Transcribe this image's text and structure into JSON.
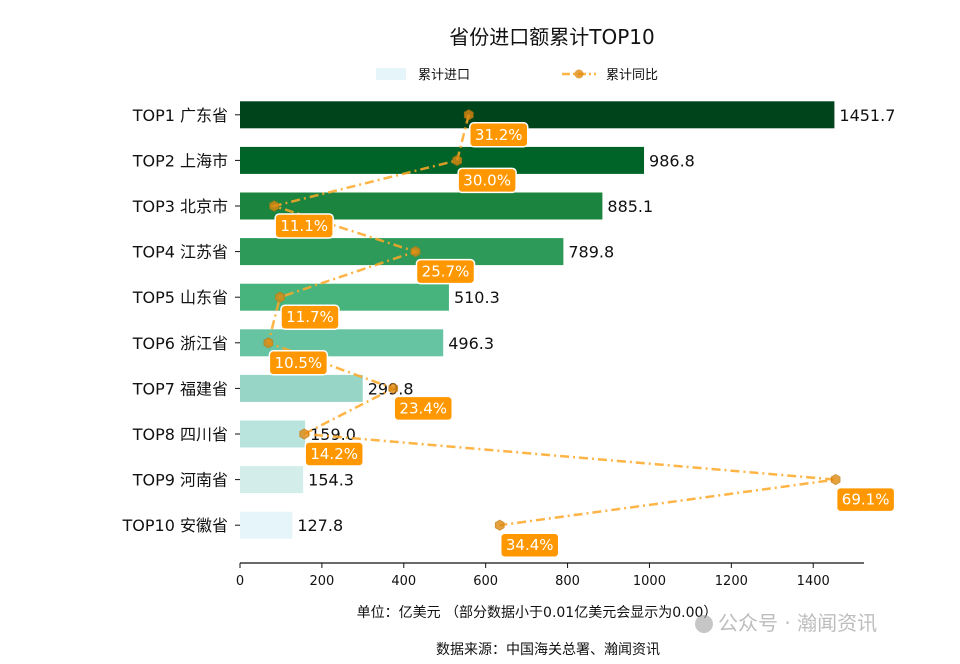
{
  "chart_data": {
    "type": "bar",
    "orientation": "horizontal",
    "title": "省份进口额累计TOP10",
    "categories": [
      "TOP1 广东省",
      "TOP2 上海市",
      "TOP3 北京市",
      "TOP4 江苏省",
      "TOP5 山东省",
      "TOP6 浙江省",
      "TOP7 福建省",
      "TOP8 四川省",
      "TOP9 河南省",
      "TOP10 安徽省"
    ],
    "series": [
      {
        "name": "累计进口",
        "type": "bar",
        "values": [
          1451.7,
          986.8,
          885.1,
          789.8,
          510.3,
          496.3,
          299.8,
          159.0,
          154.3,
          127.8
        ],
        "colors": [
          "#00441b",
          "#006428",
          "#1b843f",
          "#2e9a59",
          "#48b47d",
          "#66c4a3",
          "#97d6c6",
          "#b9e4dd",
          "#d3eeea",
          "#e5f5f9"
        ]
      },
      {
        "name": "累计同比",
        "type": "line",
        "values": [
          31.2,
          30.0,
          11.1,
          25.7,
          11.7,
          10.5,
          23.4,
          14.2,
          69.1,
          34.4
        ],
        "labels": [
          "31.2%",
          "30.0%",
          "11.1%",
          "25.7%",
          "11.7%",
          "10.5%",
          "23.4%",
          "14.2%",
          "69.1%",
          "34.4%"
        ],
        "color": "#ffa726",
        "label_color": "#ff9800",
        "xlim": [
          7.57,
          72.03
        ]
      }
    ],
    "xlim": [
      0,
      1524
    ],
    "xticks": [
      "0",
      "200",
      "400",
      "600",
      "800",
      "1000",
      "1200",
      "1400"
    ],
    "xtick_values": [
      0,
      200,
      400,
      600,
      800,
      1000,
      1200,
      1400
    ],
    "value_labels": [
      "1451.7",
      "986.8",
      "885.1",
      "789.8",
      "510.3",
      "496.3",
      "299.8",
      "159.0",
      "154.3",
      "127.8"
    ],
    "xlabel": "单位：亿美元  （部分数据小于0.01亿美元会显示为0.00）",
    "source": "数据来源：中国海关总署、瀚闻资讯",
    "legend": {
      "position": "top-center",
      "entries": [
        "累计进口",
        "累计同比"
      ]
    },
    "grid": false
  },
  "watermark": "公众号 · 瀚闻资讯"
}
